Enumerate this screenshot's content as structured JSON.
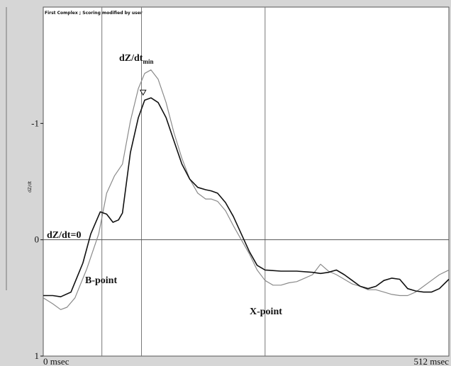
{
  "header": {
    "status": "First Complex ; Scoring modified by user"
  },
  "chart_data": {
    "type": "line",
    "title": "",
    "xlabel": "",
    "ylabel": "dZ/dt",
    "xlim": [
      0,
      512
    ],
    "ylim": [
      1,
      -2
    ],
    "x_ticks": [
      {
        "value": 0,
        "label": "0 msec"
      },
      {
        "value": 512,
        "label": "512 msec"
      }
    ],
    "y_ticks": [
      {
        "value": -1,
        "label": "-1"
      },
      {
        "value": 0,
        "label": "0"
      },
      {
        "value": 1,
        "label": "1"
      }
    ],
    "vertical_markers": [
      74,
      124,
      280
    ],
    "zero_line": 0,
    "series": [
      {
        "color": "#111111",
        "x": [
          0,
          12,
          22,
          35,
          50,
          60,
          72,
          80,
          88,
          95,
          100,
          110,
          120,
          128,
          136,
          145,
          155,
          165,
          175,
          185,
          195,
          205,
          212,
          220,
          230,
          240,
          250,
          260,
          270,
          280,
          300,
          320,
          340,
          350,
          360,
          370,
          380,
          390,
          400,
          410,
          420,
          430,
          440,
          450,
          460,
          470,
          480,
          490,
          500,
          512
        ],
        "y": [
          0.48,
          0.48,
          0.49,
          0.45,
          0.2,
          -0.05,
          -0.24,
          -0.22,
          -0.15,
          -0.17,
          -0.23,
          -0.75,
          -1.05,
          -1.2,
          -1.22,
          -1.18,
          -1.05,
          -0.85,
          -0.65,
          -0.52,
          -0.45,
          -0.43,
          -0.42,
          -0.4,
          -0.32,
          -0.2,
          -0.05,
          0.1,
          0.22,
          0.26,
          0.27,
          0.27,
          0.28,
          0.29,
          0.28,
          0.26,
          0.3,
          0.35,
          0.4,
          0.42,
          0.4,
          0.35,
          0.33,
          0.34,
          0.42,
          0.44,
          0.45,
          0.45,
          0.42,
          0.34
        ]
      },
      {
        "color": "#8a8a8a",
        "x": [
          0,
          12,
          22,
          30,
          40,
          55,
          70,
          80,
          90,
          100,
          110,
          120,
          128,
          136,
          145,
          155,
          165,
          175,
          185,
          195,
          205,
          212,
          220,
          230,
          240,
          250,
          260,
          270,
          280,
          290,
          300,
          310,
          320,
          330,
          340,
          350,
          360,
          370,
          380,
          390,
          400,
          410,
          420,
          430,
          440,
          450,
          460,
          470,
          480,
          490,
          500,
          512
        ],
        "y": [
          0.5,
          0.55,
          0.6,
          0.58,
          0.5,
          0.25,
          -0.05,
          -0.4,
          -0.55,
          -0.65,
          -1.02,
          -1.3,
          -1.43,
          -1.46,
          -1.38,
          -1.18,
          -0.92,
          -0.7,
          -0.52,
          -0.4,
          -0.35,
          -0.35,
          -0.33,
          -0.25,
          -0.12,
          0.0,
          0.12,
          0.26,
          0.35,
          0.39,
          0.39,
          0.37,
          0.36,
          0.33,
          0.3,
          0.21,
          0.27,
          0.3,
          0.34,
          0.38,
          0.4,
          0.43,
          0.43,
          0.45,
          0.47,
          0.48,
          0.48,
          0.45,
          0.4,
          0.35,
          0.3,
          0.26
        ]
      }
    ],
    "min_marker": {
      "x": 126,
      "y": -1.25
    },
    "annotations": [
      {
        "id": "dzdt-min",
        "text": "dZ/dt",
        "sub": "min"
      },
      {
        "id": "dzdt-zero",
        "text": "dZ/dt=0"
      },
      {
        "id": "b-point",
        "text": "B-point"
      },
      {
        "id": "x-point",
        "text": "X-point"
      }
    ]
  }
}
